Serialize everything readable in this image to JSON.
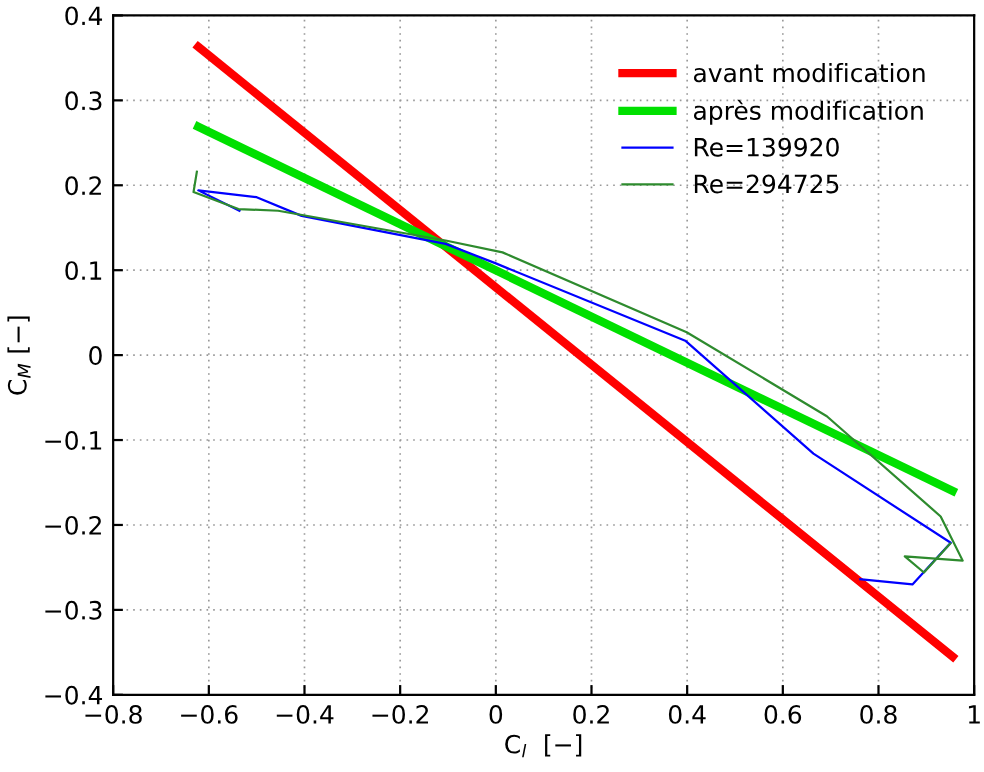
{
  "chart_data": {
    "type": "line",
    "xlabel": "C$_{l}$  [−]",
    "ylabel": "C$_{M}$ [−]",
    "xlim": [
      -0.8,
      1
    ],
    "ylim": [
      -0.4,
      0.4
    ],
    "xticks": [
      {
        "value": -0.8,
        "label": "−0.8"
      },
      {
        "value": -0.6,
        "label": "−0.6"
      },
      {
        "value": -0.4,
        "label": "−0.4"
      },
      {
        "value": -0.2,
        "label": "−0.2"
      },
      0,
      0.2,
      0.4,
      0.6,
      0.8,
      1
    ],
    "yticks": [
      {
        "value": -0.4,
        "label": "−0.4"
      },
      {
        "value": -0.3,
        "label": "−0.3"
      },
      {
        "value": -0.2,
        "label": "−0.2"
      },
      {
        "value": -0.1,
        "label": "−0.1"
      },
      0,
      0.1,
      0.2,
      0.3,
      0.4
    ],
    "grid": true,
    "legend": "top right",
    "line_style": "solid",
    "series": [
      {
        "name": "avant modification",
        "color": "#ff0000",
        "x": [
          -0.622,
          0.955
        ],
        "values": [
          0.363,
          -0.355
        ]
      },
      {
        "name": "après modification",
        "color": "#00e000",
        "x": [
          -0.622,
          0.955
        ],
        "values": [
          0.269,
          -0.16
        ]
      },
      {
        "name": "Re=139920",
        "color": "#0000ff",
        "x": [
          -0.536,
          -0.622,
          -0.5,
          -0.406,
          -0.105,
          0.0,
          0.396,
          0.664,
          0.951,
          0.871,
          0.762
        ],
        "values": [
          0.17,
          0.194,
          0.186,
          0.164,
          0.131,
          0.108,
          0.017,
          -0.116,
          -0.221,
          -0.27,
          -0.264
        ]
      },
      {
        "name": "Re=294725",
        "color": "#2e8b2e",
        "x": [
          -0.625,
          -0.632,
          -0.538,
          -0.455,
          -0.105,
          0.014,
          0.399,
          0.692,
          0.93,
          0.976,
          0.855,
          0.895,
          0.95
        ],
        "values": [
          0.216,
          0.192,
          0.172,
          0.17,
          0.135,
          0.121,
          0.027,
          -0.072,
          -0.19,
          -0.242,
          -0.237,
          -0.256,
          -0.222
        ]
      }
    ]
  }
}
